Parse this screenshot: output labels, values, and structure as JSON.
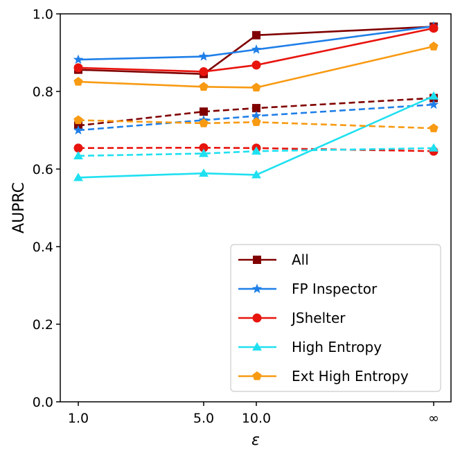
{
  "chart_data": {
    "type": "line",
    "title": "",
    "xlabel": "ε",
    "ylabel": "AUPRC",
    "ylim": [
      0.0,
      1.0
    ],
    "x": [
      "1.0",
      "5.0",
      "10.0",
      "∞"
    ],
    "x_tick_labels": [
      "1.0",
      "5.0",
      "10.0",
      "∞"
    ],
    "y_tick_labels": [
      "0.0",
      "0.2",
      "0.4",
      "0.6",
      "0.8",
      "1.0"
    ],
    "y_ticks": [
      0.0,
      0.2,
      0.4,
      0.6,
      0.8,
      1.0
    ],
    "legend_position": "lower-right",
    "series": [
      {
        "name": "All",
        "color": "#800000",
        "marker": "square",
        "style": "solid",
        "values": [
          0.856,
          0.845,
          0.945,
          0.967
        ]
      },
      {
        "name": "All",
        "color": "#800000",
        "marker": "square",
        "style": "dashed",
        "values": [
          0.712,
          0.748,
          0.757,
          0.783
        ]
      },
      {
        "name": "FP Inspector",
        "color": "#1f7fe8",
        "marker": "star",
        "style": "solid",
        "values": [
          0.882,
          0.89,
          0.908,
          0.968
        ]
      },
      {
        "name": "FP Inspector",
        "color": "#1f7fe8",
        "marker": "star",
        "style": "dashed",
        "values": [
          0.7,
          0.726,
          0.737,
          0.766
        ]
      },
      {
        "name": "JShelter",
        "color": "#e8140e",
        "marker": "circle",
        "style": "solid",
        "values": [
          0.861,
          0.851,
          0.868,
          0.963
        ]
      },
      {
        "name": "JShelter",
        "color": "#e8140e",
        "marker": "circle",
        "style": "dashed",
        "values": [
          0.654,
          0.655,
          0.654,
          0.646
        ]
      },
      {
        "name": "High Entropy",
        "color": "#1fe0f0",
        "marker": "triangle",
        "style": "solid",
        "values": [
          0.578,
          0.589,
          0.585,
          0.788
        ]
      },
      {
        "name": "High Entropy",
        "color": "#1fe0f0",
        "marker": "triangle",
        "style": "dashed",
        "values": [
          0.634,
          0.64,
          0.646,
          0.654
        ]
      },
      {
        "name": "Ext High Entropy",
        "color": "#f89a12",
        "marker": "pentagon",
        "style": "solid",
        "values": [
          0.825,
          0.812,
          0.81,
          0.916
        ]
      },
      {
        "name": "Ext High Entropy",
        "color": "#f89a12",
        "marker": "pentagon",
        "style": "dashed",
        "values": [
          0.726,
          0.718,
          0.721,
          0.705
        ]
      }
    ],
    "legend": [
      {
        "name": "All",
        "color": "#800000",
        "marker": "square"
      },
      {
        "name": "FP Inspector",
        "color": "#1f7fe8",
        "marker": "star"
      },
      {
        "name": "JShelter",
        "color": "#e8140e",
        "marker": "circle"
      },
      {
        "name": "High Entropy",
        "color": "#1fe0f0",
        "marker": "triangle"
      },
      {
        "name": "Ext High Entropy",
        "color": "#f89a12",
        "marker": "pentagon"
      }
    ]
  }
}
